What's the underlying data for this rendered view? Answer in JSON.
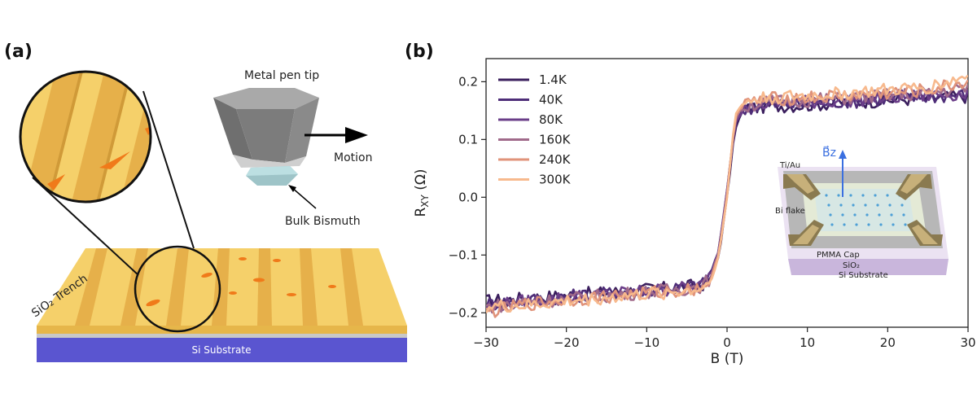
{
  "panel_a": {
    "label": "(a)",
    "metal_pen_tip": "Metal pen tip",
    "motion": "Motion",
    "bulk_bismuth": "Bulk Bismuth",
    "sio2_trench": "SiO₂ Trench",
    "si_substrate": "Si Substrate"
  },
  "panel_b": {
    "label": "(b)",
    "inset": {
      "bz": "B⃗z",
      "ti_au": "Ti/Au",
      "bi_flake": "Bi flake",
      "pmma_cap": "PMMA Cap",
      "sio2": "SiO₂",
      "si_substrate": "Si Substrate"
    }
  },
  "chart_data": {
    "type": "line",
    "xlabel": "B (T)",
    "ylabel": "R_XY (Ω)",
    "xlim": [
      -30,
      30
    ],
    "ylim": [
      -0.225,
      0.24
    ],
    "xticks": [
      -30,
      -20,
      -10,
      0,
      10,
      20,
      30
    ],
    "xtick_labels": [
      "−30",
      "−20",
      "−10",
      "0",
      "10",
      "20",
      "30"
    ],
    "yticks": [
      -0.2,
      -0.1,
      0.0,
      0.1,
      0.2
    ],
    "ytick_labels": [
      "−0.2",
      "−0.1",
      "0.0",
      "0.1",
      "0.2"
    ],
    "legend_position": "top-left",
    "grid": false,
    "series": [
      {
        "name": "1.4K",
        "color": "#3b1f5e",
        "x": [
          -30,
          -25,
          -20,
          -15,
          -10,
          -5,
          -3,
          -2,
          -1,
          0,
          1,
          2,
          3,
          5,
          10,
          15,
          20,
          25,
          30
        ],
        "values": [
          -0.18,
          -0.175,
          -0.17,
          -0.165,
          -0.16,
          -0.155,
          -0.15,
          -0.14,
          -0.1,
          0.0,
          0.12,
          0.15,
          0.155,
          0.158,
          0.16,
          0.165,
          0.168,
          0.172,
          0.175
        ]
      },
      {
        "name": "40K",
        "color": "#4e2d78",
        "x": [
          -30,
          -25,
          -20,
          -15,
          -10,
          -5,
          -3,
          -2,
          -1,
          0,
          1,
          2,
          3,
          5,
          10,
          15,
          20,
          25,
          30
        ],
        "values": [
          -0.185,
          -0.178,
          -0.172,
          -0.166,
          -0.16,
          -0.155,
          -0.15,
          -0.13,
          -0.09,
          0.01,
          0.13,
          0.15,
          0.156,
          0.16,
          0.162,
          0.166,
          0.17,
          0.174,
          0.178
        ]
      },
      {
        "name": "80K",
        "color": "#6a3d88",
        "x": [
          -30,
          -25,
          -20,
          -15,
          -10,
          -5,
          -3,
          -2,
          -1,
          0,
          1,
          2,
          3,
          5,
          10,
          15,
          20,
          25,
          30
        ],
        "values": [
          -0.19,
          -0.18,
          -0.174,
          -0.168,
          -0.162,
          -0.157,
          -0.152,
          -0.135,
          -0.09,
          0.015,
          0.13,
          0.152,
          0.158,
          0.162,
          0.165,
          0.168,
          0.172,
          0.176,
          0.18
        ]
      },
      {
        "name": "160K",
        "color": "#a06a8a",
        "x": [
          -30,
          -25,
          -20,
          -15,
          -10,
          -5,
          -3,
          -2,
          -1,
          0,
          1,
          2,
          3,
          5,
          10,
          15,
          20,
          25,
          30
        ],
        "values": [
          -0.19,
          -0.182,
          -0.176,
          -0.17,
          -0.164,
          -0.158,
          -0.153,
          -0.138,
          -0.095,
          0.01,
          0.135,
          0.155,
          0.16,
          0.165,
          0.168,
          0.172,
          0.176,
          0.18,
          0.19
        ]
      },
      {
        "name": "240K",
        "color": "#e0937a",
        "x": [
          -30,
          -25,
          -20,
          -15,
          -10,
          -5,
          -3,
          -2,
          -1,
          0,
          1,
          2,
          3,
          5,
          10,
          15,
          20,
          25,
          30
        ],
        "values": [
          -0.2,
          -0.185,
          -0.178,
          -0.172,
          -0.166,
          -0.16,
          -0.155,
          -0.14,
          -0.1,
          0.005,
          0.14,
          0.158,
          0.165,
          0.17,
          0.172,
          0.176,
          0.18,
          0.185,
          0.2
        ]
      },
      {
        "name": "300K",
        "color": "#f7b98d",
        "x": [
          -30,
          -25,
          -20,
          -15,
          -10,
          -5,
          -3,
          -2,
          -1,
          0,
          1,
          2,
          3,
          5,
          10,
          15,
          20,
          25,
          30
        ],
        "values": [
          -0.19,
          -0.188,
          -0.18,
          -0.174,
          -0.168,
          -0.162,
          -0.157,
          -0.143,
          -0.1,
          0.0,
          0.145,
          0.162,
          0.168,
          0.172,
          0.175,
          0.18,
          0.185,
          0.19,
          0.21
        ]
      }
    ]
  }
}
